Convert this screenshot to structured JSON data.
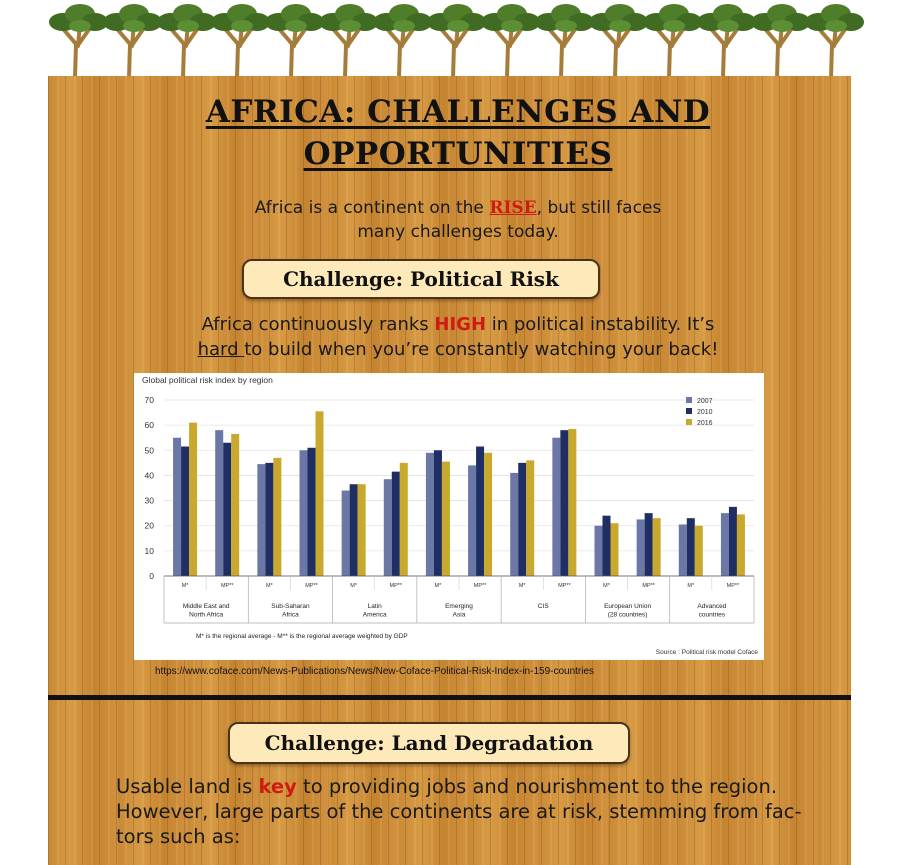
{
  "header": {
    "title_line1": "AFRICA: CHALLENGES AND",
    "title_line2": "OPPORTUNITIES",
    "intro_pre": "Africa is a continent on the ",
    "intro_highlight": "RISE",
    "intro_post": ", but still faces",
    "intro_line2": "many challenges today."
  },
  "section1": {
    "heading": "Challenge: Political Risk",
    "text_pre": "Africa continuously ranks ",
    "text_highlight": "HIGH",
    "text_post": " in political instability. It’s",
    "text_line2_underlined": "hard ",
    "text_line2_rest": "to build when you’re constantly watching your back!",
    "source_url": "https://www.coface.com/News-Publications/News/New-Coface-Political-Risk-Index-in-159-countries"
  },
  "section2": {
    "heading": "Challenge: Land Degradation",
    "line1_pre": "Usable land is ",
    "line1_highlight": "key",
    "line1_post": " to providing jobs and nourishment to the region.",
    "line2": "However, large parts of the continents are at risk, stemming from fac-",
    "line3": "tors such as:"
  },
  "colors": {
    "series_2007": "#6b77a6",
    "series_2010": "#1f2e63",
    "series_2016": "#c9a82e",
    "highlight": "#d01a12"
  },
  "chart_data": {
    "type": "bar",
    "title": "Global political risk index by region",
    "ylim": [
      0,
      70
    ],
    "yticks": [
      0,
      10,
      20,
      30,
      40,
      50,
      60,
      70
    ],
    "categories": [
      "M*",
      "MP**",
      "M*",
      "MP**",
      "M*",
      "MP**",
      "M*",
      "MP**",
      "M*",
      "MP**",
      "M*",
      "MP**",
      "M*",
      "MP**"
    ],
    "groups": [
      {
        "label": [
          "Middle East and",
          "North Africa"
        ]
      },
      {
        "label": [
          "Sub-Saharan",
          "Africa"
        ]
      },
      {
        "label": [
          "Latin",
          "America"
        ]
      },
      {
        "label": [
          "Emerging",
          "Asia"
        ]
      },
      {
        "label": [
          "CIS"
        ]
      },
      {
        "label": [
          "European Union",
          "(28 countries)"
        ]
      },
      {
        "label": [
          "Advanced",
          "countries"
        ]
      }
    ],
    "series": [
      {
        "name": "2007",
        "values": [
          55,
          58,
          44.5,
          50,
          34,
          38.5,
          49,
          44,
          41,
          55,
          20,
          22.5,
          20.5,
          25
        ]
      },
      {
        "name": "2010",
        "values": [
          51.5,
          53,
          45,
          51,
          36.5,
          41.5,
          50,
          51.5,
          45,
          58,
          24,
          25,
          23,
          27.5
        ]
      },
      {
        "name": "2016",
        "values": [
          61,
          56.5,
          47,
          65.5,
          36.5,
          45,
          45.5,
          49,
          46,
          58.5,
          21,
          23,
          20,
          24.5
        ]
      }
    ],
    "legend_position": "top-right",
    "footnote": "M* is the regional average - M** is the regional average weighted by GDP",
    "source": "Source : Political risk model Coface"
  }
}
